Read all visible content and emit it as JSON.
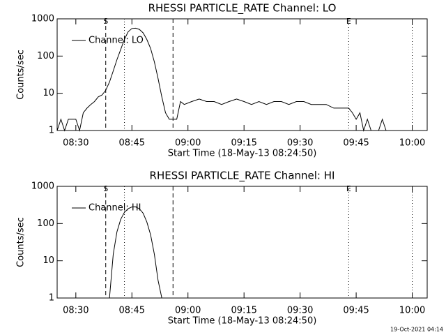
{
  "chart_data": [
    {
      "type": "line",
      "title": "RHESSI PARTICLE_RATE Channel: LO",
      "xlabel": "Start Time (18-May-13 08:24:50)",
      "ylabel": "Counts/sec",
      "log_y": true,
      "legend": "upper left",
      "xlim": [
        "08:25",
        "10:04"
      ],
      "xticks": [
        "08:30",
        "08:45",
        "09:00",
        "09:15",
        "09:30",
        "09:45",
        "10:00"
      ],
      "ylim": [
        1,
        1000
      ],
      "yticks": [
        1,
        10,
        100,
        1000
      ],
      "x": [
        "08:25",
        "08:26",
        "08:27",
        "08:28",
        "08:29",
        "08:30",
        "08:31",
        "08:32",
        "08:33",
        "08:34",
        "08:35",
        "08:36",
        "08:37",
        "08:38",
        "08:39",
        "08:40",
        "08:41",
        "08:42",
        "08:43",
        "08:44",
        "08:45",
        "08:46",
        "08:47",
        "08:48",
        "08:49",
        "08:50",
        "08:51",
        "08:52",
        "08:53",
        "08:54",
        "08:55",
        "08:56",
        "08:57",
        "08:58",
        "08:59",
        "09:01",
        "09:03",
        "09:05",
        "09:07",
        "09:09",
        "09:11",
        "09:13",
        "09:15",
        "09:17",
        "09:19",
        "09:21",
        "09:23",
        "09:25",
        "09:27",
        "09:29",
        "09:31",
        "09:33",
        "09:35",
        "09:37",
        "09:39",
        "09:41",
        "09:43",
        "09:44",
        "09:45",
        "09:46",
        "09:47",
        "09:48",
        "09:49",
        "09:50",
        "09:51",
        "09:52",
        "09:53",
        "09:54",
        "09:55",
        "09:56",
        "09:57",
        "09:58",
        "09:59",
        "10:00",
        "10:01",
        "10:02",
        "10:03",
        "10:04"
      ],
      "series": [
        {
          "name": "Channel: LO",
          "color": "#000000",
          "values": [
            1,
            2,
            1,
            2,
            2,
            2,
            1,
            3,
            4,
            5,
            6,
            8,
            9,
            12,
            20,
            40,
            80,
            150,
            280,
            450,
            550,
            560,
            520,
            420,
            280,
            160,
            70,
            25,
            8,
            3,
            2,
            2,
            2,
            6,
            5,
            6,
            7,
            6,
            6,
            5,
            6,
            7,
            6,
            5,
            6,
            5,
            6,
            6,
            5,
            6,
            6,
            5,
            5,
            5,
            4,
            4,
            4,
            3,
            2,
            3,
            1,
            2,
            1,
            1,
            1,
            2,
            1,
            1,
            1,
            1,
            1,
            1,
            1,
            1,
            1,
            1,
            1,
            1
          ]
        }
      ],
      "markers": [
        {
          "x": "08:38",
          "style": "dashed",
          "label": "S"
        },
        {
          "x": "08:43",
          "style": "dotted"
        },
        {
          "x": "08:56",
          "style": "dashed"
        },
        {
          "x": "09:43",
          "style": "dotted",
          "label": "E"
        },
        {
          "x": "10:00",
          "style": "dotted"
        }
      ]
    },
    {
      "type": "line",
      "title": "RHESSI PARTICLE_RATE Channel: HI",
      "xlabel": "Start Time (18-May-13 08:24:50)",
      "ylabel": "Counts/sec",
      "log_y": true,
      "legend": "upper left",
      "xlim": [
        "08:25",
        "10:04"
      ],
      "xticks": [
        "08:30",
        "08:45",
        "09:00",
        "09:15",
        "09:30",
        "09:45",
        "10:00"
      ],
      "ylim": [
        1,
        1000
      ],
      "yticks": [
        1,
        10,
        100,
        1000
      ],
      "x": [
        "08:39",
        "08:40",
        "08:41",
        "08:42",
        "08:43",
        "08:44",
        "08:45",
        "08:46",
        "08:47",
        "08:48",
        "08:49",
        "08:50",
        "08:51",
        "08:52",
        "08:53"
      ],
      "series": [
        {
          "name": "Channel: HI",
          "color": "#000000",
          "values": [
            1,
            15,
            60,
            130,
            200,
            250,
            280,
            280,
            250,
            190,
            110,
            50,
            15,
            3,
            1
          ]
        }
      ],
      "markers": [
        {
          "x": "08:38",
          "style": "dashed",
          "label": "S"
        },
        {
          "x": "08:43",
          "style": "dotted"
        },
        {
          "x": "08:56",
          "style": "dashed"
        },
        {
          "x": "09:43",
          "style": "dotted",
          "label": "E"
        },
        {
          "x": "10:00",
          "style": "dotted"
        }
      ]
    }
  ],
  "timestamp": "19-Oct-2021 04:14"
}
